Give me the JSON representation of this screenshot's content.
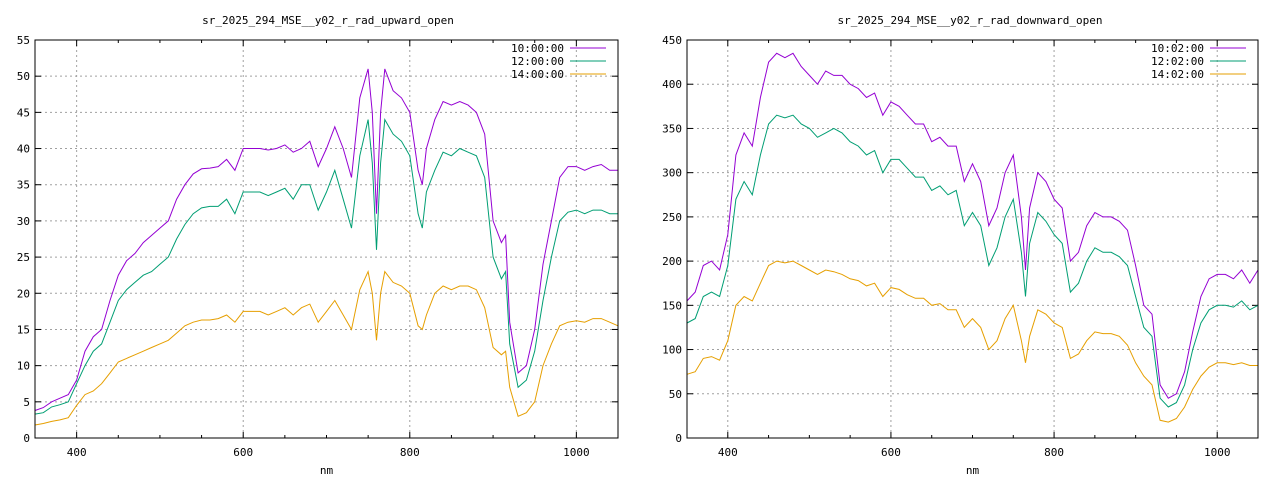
{
  "chart_data": [
    {
      "type": "line",
      "title": "sr_2025_294_MSE__y02_r_rad_upward_open",
      "xlabel": "nm",
      "ylabel": "",
      "xlim": [
        350,
        1050
      ],
      "ylim": [
        0,
        55
      ],
      "xticks": [
        400,
        600,
        800,
        1000
      ],
      "yticks": [
        0,
        5,
        10,
        15,
        20,
        25,
        30,
        35,
        40,
        45,
        50,
        55
      ],
      "grid": true,
      "legend_position": "top-right",
      "series": [
        {
          "name": "10:00:00",
          "color": "#9400d3",
          "x": [
            350,
            360,
            370,
            380,
            390,
            400,
            410,
            420,
            430,
            440,
            450,
            460,
            470,
            480,
            490,
            500,
            510,
            520,
            530,
            540,
            550,
            560,
            570,
            580,
            590,
            600,
            610,
            620,
            630,
            640,
            650,
            660,
            670,
            680,
            690,
            700,
            710,
            720,
            730,
            740,
            750,
            755,
            760,
            765,
            770,
            780,
            790,
            800,
            810,
            815,
            820,
            830,
            840,
            850,
            860,
            870,
            880,
            890,
            900,
            910,
            915,
            920,
            930,
            940,
            950,
            960,
            970,
            980,
            990,
            1000,
            1010,
            1020,
            1030,
            1040,
            1050
          ],
          "y": [
            3.8,
            4.2,
            5,
            5.5,
            6,
            8,
            12,
            14,
            15,
            19,
            22.5,
            24.5,
            25.5,
            27,
            28,
            29,
            30,
            33,
            35,
            36.5,
            37.2,
            37.3,
            37.5,
            38.5,
            37,
            40,
            40,
            40,
            39.8,
            40,
            40.5,
            39.5,
            40,
            41,
            37.5,
            40,
            43,
            40,
            36,
            47,
            51,
            45,
            31,
            45,
            51,
            48,
            47,
            45,
            37,
            35,
            40,
            44,
            46.5,
            46,
            46.5,
            46,
            45,
            42,
            30,
            27,
            28,
            16,
            9,
            10,
            15,
            24,
            30,
            36,
            37.5,
            37.5,
            37,
            37.5,
            37.8,
            37,
            37
          ]
        },
        {
          "name": "12:00:00",
          "color": "#009e73",
          "x": [
            350,
            360,
            370,
            380,
            390,
            400,
            410,
            420,
            430,
            440,
            450,
            460,
            470,
            480,
            490,
            500,
            510,
            520,
            530,
            540,
            550,
            560,
            570,
            580,
            590,
            600,
            610,
            620,
            630,
            640,
            650,
            660,
            670,
            680,
            690,
            700,
            710,
            720,
            730,
            740,
            750,
            755,
            760,
            765,
            770,
            780,
            790,
            800,
            810,
            815,
            820,
            830,
            840,
            850,
            860,
            870,
            880,
            890,
            900,
            910,
            915,
            920,
            930,
            940,
            950,
            960,
            970,
            980,
            990,
            1000,
            1010,
            1020,
            1030,
            1040,
            1050
          ],
          "y": [
            3.3,
            3.5,
            4.3,
            4.6,
            5,
            7.5,
            10,
            12,
            13,
            16,
            19,
            20.5,
            21.5,
            22.5,
            23,
            24,
            25,
            27.5,
            29.5,
            31,
            31.8,
            32,
            32,
            33,
            31,
            34,
            34,
            34,
            33.5,
            34,
            34.5,
            33,
            35,
            35,
            31.5,
            34,
            37,
            33,
            29,
            39,
            44,
            38,
            26,
            38,
            44,
            42,
            41,
            39,
            31,
            29,
            34,
            37,
            39.5,
            39,
            40,
            39.5,
            39,
            36,
            25,
            22,
            23,
            13,
            7,
            8,
            12,
            19,
            25,
            30,
            31.2,
            31.5,
            31,
            31.5,
            31.5,
            31,
            31
          ]
        },
        {
          "name": "14:00:00",
          "color": "#e69f00",
          "x": [
            350,
            360,
            370,
            380,
            390,
            400,
            410,
            420,
            430,
            440,
            450,
            460,
            470,
            480,
            490,
            500,
            510,
            520,
            530,
            540,
            550,
            560,
            570,
            580,
            590,
            600,
            610,
            620,
            630,
            640,
            650,
            660,
            670,
            680,
            690,
            700,
            710,
            720,
            730,
            740,
            750,
            755,
            760,
            765,
            770,
            780,
            790,
            800,
            810,
            815,
            820,
            830,
            840,
            850,
            860,
            870,
            880,
            890,
            900,
            910,
            915,
            920,
            930,
            940,
            950,
            960,
            970,
            980,
            990,
            1000,
            1010,
            1020,
            1030,
            1040,
            1050
          ],
          "y": [
            1.8,
            2,
            2.3,
            2.5,
            2.8,
            4.5,
            6,
            6.5,
            7.5,
            9,
            10.5,
            11,
            11.5,
            12,
            12.5,
            13,
            13.5,
            14.5,
            15.5,
            16,
            16.3,
            16.3,
            16.5,
            17,
            16,
            17.5,
            17.5,
            17.5,
            17,
            17.5,
            18,
            17,
            18,
            18.5,
            16,
            17.5,
            19,
            17,
            15,
            20.5,
            23,
            20,
            13.5,
            20,
            23,
            21.5,
            21,
            20,
            15.5,
            15,
            17,
            20,
            21,
            20.5,
            21,
            21,
            20.5,
            18,
            12.5,
            11.5,
            12,
            7,
            3,
            3.5,
            5,
            10,
            13,
            15.5,
            16,
            16.2,
            16,
            16.5,
            16.5,
            16,
            15.5
          ]
        }
      ]
    },
    {
      "type": "line",
      "title": "sr_2025_294_MSE__y02_r_rad_downward_open",
      "xlabel": "nm",
      "ylabel": "",
      "xlim": [
        350,
        1050
      ],
      "ylim": [
        0,
        450
      ],
      "xticks": [
        400,
        600,
        800,
        1000
      ],
      "yticks": [
        0,
        50,
        100,
        150,
        200,
        250,
        300,
        350,
        400,
        450
      ],
      "grid": true,
      "legend_position": "top-right",
      "series": [
        {
          "name": "10:02:00",
          "color": "#9400d3",
          "x": [
            350,
            360,
            370,
            380,
            390,
            400,
            410,
            420,
            430,
            440,
            450,
            460,
            470,
            480,
            490,
            500,
            510,
            520,
            530,
            540,
            550,
            560,
            570,
            580,
            590,
            600,
            610,
            620,
            630,
            640,
            650,
            660,
            670,
            680,
            690,
            700,
            710,
            720,
            730,
            740,
            750,
            760,
            765,
            770,
            780,
            790,
            800,
            810,
            820,
            830,
            840,
            850,
            860,
            870,
            880,
            890,
            900,
            910,
            920,
            930,
            940,
            950,
            960,
            970,
            980,
            990,
            1000,
            1010,
            1020,
            1030,
            1040,
            1050
          ],
          "y": [
            155,
            165,
            195,
            200,
            190,
            230,
            320,
            345,
            330,
            385,
            425,
            435,
            430,
            435,
            420,
            410,
            400,
            415,
            410,
            410,
            400,
            395,
            385,
            390,
            365,
            380,
            375,
            365,
            355,
            355,
            335,
            340,
            330,
            330,
            290,
            310,
            290,
            240,
            260,
            300,
            320,
            250,
            190,
            260,
            300,
            290,
            270,
            260,
            200,
            210,
            240,
            255,
            250,
            250,
            245,
            235,
            195,
            150,
            140,
            60,
            45,
            50,
            75,
            120,
            160,
            180,
            185,
            185,
            180,
            190,
            175,
            190
          ]
        },
        {
          "name": "12:02:00",
          "color": "#009e73",
          "x": [
            350,
            360,
            370,
            380,
            390,
            400,
            410,
            420,
            430,
            440,
            450,
            460,
            470,
            480,
            490,
            500,
            510,
            520,
            530,
            540,
            550,
            560,
            570,
            580,
            590,
            600,
            610,
            620,
            630,
            640,
            650,
            660,
            670,
            680,
            690,
            700,
            710,
            720,
            730,
            740,
            750,
            760,
            765,
            770,
            780,
            790,
            800,
            810,
            820,
            830,
            840,
            850,
            860,
            870,
            880,
            890,
            900,
            910,
            920,
            930,
            940,
            950,
            960,
            970,
            980,
            990,
            1000,
            1010,
            1020,
            1030,
            1040,
            1050
          ],
          "y": [
            130,
            135,
            160,
            165,
            160,
            195,
            270,
            290,
            275,
            320,
            355,
            365,
            362,
            365,
            355,
            350,
            340,
            345,
            350,
            345,
            335,
            330,
            320,
            325,
            300,
            315,
            315,
            305,
            295,
            295,
            280,
            285,
            275,
            280,
            240,
            255,
            240,
            195,
            215,
            250,
            270,
            210,
            160,
            220,
            255,
            245,
            230,
            220,
            165,
            175,
            200,
            215,
            210,
            210,
            205,
            195,
            160,
            125,
            115,
            45,
            35,
            40,
            60,
            100,
            130,
            145,
            150,
            150,
            148,
            155,
            145,
            150
          ]
        },
        {
          "name": "14:02:00",
          "color": "#e69f00",
          "x": [
            350,
            360,
            370,
            380,
            390,
            400,
            410,
            420,
            430,
            440,
            450,
            460,
            470,
            480,
            490,
            500,
            510,
            520,
            530,
            540,
            550,
            560,
            570,
            580,
            590,
            600,
            610,
            620,
            630,
            640,
            650,
            660,
            670,
            680,
            690,
            700,
            710,
            720,
            730,
            740,
            750,
            760,
            765,
            770,
            780,
            790,
            800,
            810,
            820,
            830,
            840,
            850,
            860,
            870,
            880,
            890,
            900,
            910,
            920,
            930,
            940,
            950,
            960,
            970,
            980,
            990,
            1000,
            1010,
            1020,
            1030,
            1040,
            1050
          ],
          "y": [
            72,
            75,
            90,
            92,
            88,
            110,
            150,
            160,
            155,
            175,
            195,
            200,
            198,
            200,
            195,
            190,
            185,
            190,
            188,
            185,
            180,
            178,
            172,
            175,
            160,
            170,
            168,
            162,
            158,
            158,
            150,
            152,
            145,
            145,
            125,
            135,
            125,
            100,
            110,
            135,
            150,
            110,
            85,
            115,
            145,
            140,
            130,
            125,
            90,
            95,
            110,
            120,
            118,
            118,
            115,
            105,
            85,
            70,
            60,
            20,
            18,
            22,
            35,
            55,
            70,
            80,
            85,
            85,
            83,
            85,
            82,
            82
          ]
        }
      ]
    }
  ]
}
